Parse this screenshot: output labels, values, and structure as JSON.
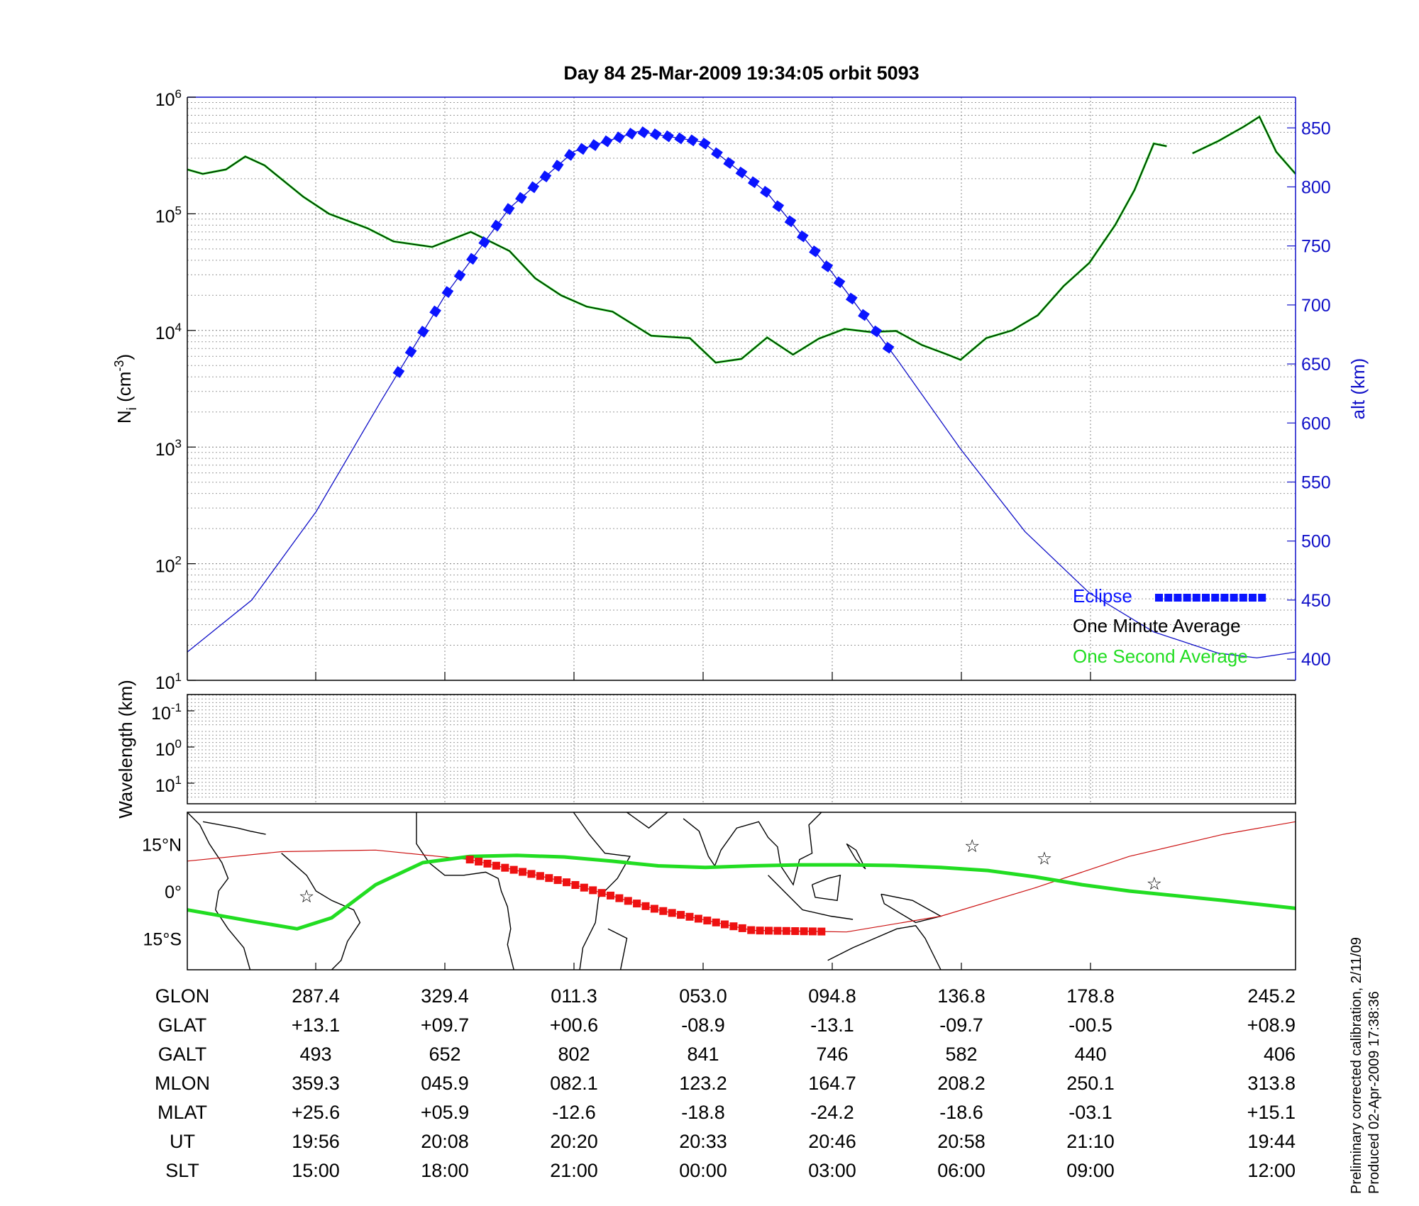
{
  "chart_data": [
    {
      "type": "line",
      "title": "Day 84  25-Mar-2009 19:34:05   orbit 5093",
      "y_scale": "log",
      "ylabel": {
        "base": "N",
        "sub": "i",
        "unit_open": " (cm",
        "unit_sup": "-3",
        "unit_close": ")"
      },
      "ylim": [
        10,
        1000000
      ],
      "y_ticks": [
        {
          "base": "10",
          "exp": "1"
        },
        {
          "base": "10",
          "exp": "2"
        },
        {
          "base": "10",
          "exp": "3"
        },
        {
          "base": "10",
          "exp": "4"
        },
        {
          "base": "10",
          "exp": "5"
        },
        {
          "base": "10",
          "exp": "6"
        }
      ],
      "x_range": [
        0,
        8.6
      ],
      "grid": true,
      "legend_position": "bottom-right",
      "y2": {
        "label": "alt (km)",
        "range": [
          382,
          876
        ],
        "ticks": [
          "400",
          "450",
          "500",
          "550",
          "600",
          "650",
          "700",
          "750",
          "800",
          "850"
        ],
        "color": "#1010c8"
      },
      "series": [
        {
          "name": "One Minute Average",
          "color": "#000000",
          "segments": [
            {
              "x": [
                0,
                0.12,
                0.3,
                0.45,
                0.6,
                0.9,
                1.1,
                1.4,
                1.6,
                1.9,
                2.2,
                2.5,
                2.7,
                2.9,
                3.1,
                3.3,
                3.6,
                3.9,
                4.1,
                4.3,
                4.5,
                4.7,
                4.9,
                5.1,
                5.3,
                5.5,
                5.7,
                5.9,
                6.0,
                6.2,
                6.4,
                6.6,
                6.8,
                7.0,
                7.2,
                7.35,
                7.5,
                7.6
              ],
              "y": [
                240000,
                220000,
                240000,
                310000,
                260000,
                140000,
                100000,
                75000,
                58000,
                52000,
                70000,
                48000,
                28000,
                20000,
                16000,
                14500,
                9000,
                8600,
                5300,
                5700,
                8700,
                6200,
                8500,
                10300,
                9700,
                9900,
                7500,
                6200,
                5600,
                8600,
                10000,
                13500,
                24000,
                38000,
                80000,
                160000,
                400000,
                380000
              ]
            },
            {
              "x": [
                7.8,
                8.0,
                8.2,
                8.32,
                8.45,
                8.6
              ],
              "y": [
                330000,
                420000,
                560000,
                680000,
                340000,
                220000
              ]
            }
          ]
        },
        {
          "name": "One Second Average",
          "color": "#22dd22",
          "segments": [
            {
              "x": [
                0,
                0.12,
                0.3,
                0.45,
                0.6,
                0.9,
                1.1,
                1.4,
                1.6,
                1.9,
                2.2,
                2.5,
                2.7,
                2.9,
                3.1,
                3.3,
                3.6,
                3.9,
                4.1,
                4.3,
                4.5,
                4.7,
                4.9,
                5.1,
                5.3,
                5.5,
                5.7,
                5.9,
                6.0,
                6.2,
                6.4,
                6.6,
                6.8,
                7.0,
                7.2,
                7.35,
                7.5,
                7.6
              ],
              "y": [
                240000,
                220000,
                240000,
                310000,
                260000,
                140000,
                100000,
                75000,
                58000,
                52000,
                70000,
                48000,
                28000,
                20000,
                16000,
                14500,
                9000,
                8600,
                5300,
                5700,
                8700,
                6200,
                8500,
                10300,
                9700,
                9900,
                7500,
                6200,
                5600,
                8600,
                10000,
                13500,
                24000,
                38000,
                80000,
                160000,
                400000,
                380000
              ]
            },
            {
              "x": [
                7.8,
                8.0,
                8.2,
                8.32,
                8.45,
                8.6
              ],
              "y": [
                330000,
                420000,
                560000,
                680000,
                340000,
                220000
              ]
            }
          ]
        },
        {
          "name": "alt (km)",
          "axis": "y2",
          "color": "#1010c8",
          "x": [
            0,
            0.5,
            1.0,
            1.5,
            2.0,
            2.5,
            3.0,
            3.5,
            4.0,
            4.5,
            5.0,
            5.5,
            6.0,
            6.5,
            7.0,
            7.5,
            8.0,
            8.3,
            8.6
          ],
          "y": [
            406,
            450,
            525,
            618,
            708,
            782,
            830,
            847,
            838,
            795,
            728,
            655,
            578,
            508,
            456,
            423,
            405,
            401,
            406
          ]
        },
        {
          "name": "Eclipse",
          "color": "#0a14ff",
          "axis": "y2",
          "x_range": [
            1.64,
            5.44
          ]
        }
      ]
    },
    {
      "type": "line",
      "ylabel": "Wavelength (km)",
      "y_scale": "log",
      "y_ticks": [
        {
          "base": "10",
          "exp": "-1"
        },
        {
          "base": "10",
          "exp": "0"
        },
        {
          "base": "10",
          "exp": "1"
        }
      ],
      "grid": true,
      "series": []
    },
    {
      "type": "scatter",
      "y_ticks": [
        "15°N",
        "0°",
        "15°S"
      ],
      "lon_range": [
        -90,
        263
      ],
      "lat_range": [
        -25,
        25
      ],
      "series": [
        {
          "name": "footprint",
          "color": "#22dd22",
          "lon": [
            -90,
            -70,
            -55,
            -44,
            -30,
            -15,
            0,
            15,
            30,
            45,
            60,
            75,
            90,
            105,
            120,
            135,
            150,
            165,
            180,
            195,
            210,
            225,
            240,
            263
          ],
          "lat": [
            -6,
            -9.5,
            -12,
            -8.5,
            2,
            9,
            11,
            11.3,
            10.8,
            9.5,
            8,
            7.5,
            8,
            8.3,
            8.3,
            8.1,
            7.5,
            6.5,
            4.5,
            2,
            0,
            -1.5,
            -3,
            -5.5
          ]
        },
        {
          "name": "ground track",
          "color": "#cc1111",
          "lon": [
            -90,
            -60,
            -30,
            0,
            30,
            60,
            90,
            120,
            150,
            180,
            210,
            240,
            263
          ],
          "lat": [
            9.5,
            12.5,
            13,
            10,
            3,
            -6,
            -12.5,
            -13,
            -8,
            1,
            11,
            18,
            22
          ]
        },
        {
          "name": "eclipse track",
          "color": "#ee1111",
          "lon_range": [
            0,
            112
          ]
        },
        {
          "name": "stars",
          "color": "#cc33cc",
          "lon": [
            -52,
            160,
            183,
            218
          ],
          "lat": [
            -2,
            14,
            10,
            2
          ]
        }
      ]
    }
  ],
  "table": {
    "rows": [
      {
        "label": "GLON",
        "values": [
          "287.4",
          "329.4",
          "011.3",
          "053.0",
          "094.8",
          "136.8",
          "178.8",
          "245.2"
        ]
      },
      {
        "label": "GLAT",
        "values": [
          "+13.1",
          "+09.7",
          "+00.6",
          "-08.9",
          "-13.1",
          "-09.7",
          "-00.5",
          "+08.9"
        ]
      },
      {
        "label": "GALT",
        "values": [
          "493",
          "652",
          "802",
          "841",
          "746",
          "582",
          "440",
          "406"
        ]
      },
      {
        "label": "MLON",
        "values": [
          "359.3",
          "045.9",
          "082.1",
          "123.2",
          "164.7",
          "208.2",
          "250.1",
          "313.8"
        ]
      },
      {
        "label": "MLAT",
        "values": [
          "+25.6",
          "+05.9",
          "-12.6",
          "-18.8",
          "-24.2",
          "-18.6",
          "-03.1",
          "+15.1"
        ]
      },
      {
        "label": "UT",
        "values": [
          "19:56",
          "20:08",
          "20:20",
          "20:33",
          "20:46",
          "20:58",
          "21:10",
          "19:44"
        ]
      },
      {
        "label": "SLT",
        "values": [
          "15:00",
          "18:00",
          "21:00",
          "00:00",
          "03:00",
          "06:00",
          "09:00",
          "12:00"
        ]
      }
    ]
  },
  "notes": {
    "line1": "Preliminary corrected calibration, 2/11/09",
    "line2": "Produced 02-Apr-2009 17:38:36"
  }
}
